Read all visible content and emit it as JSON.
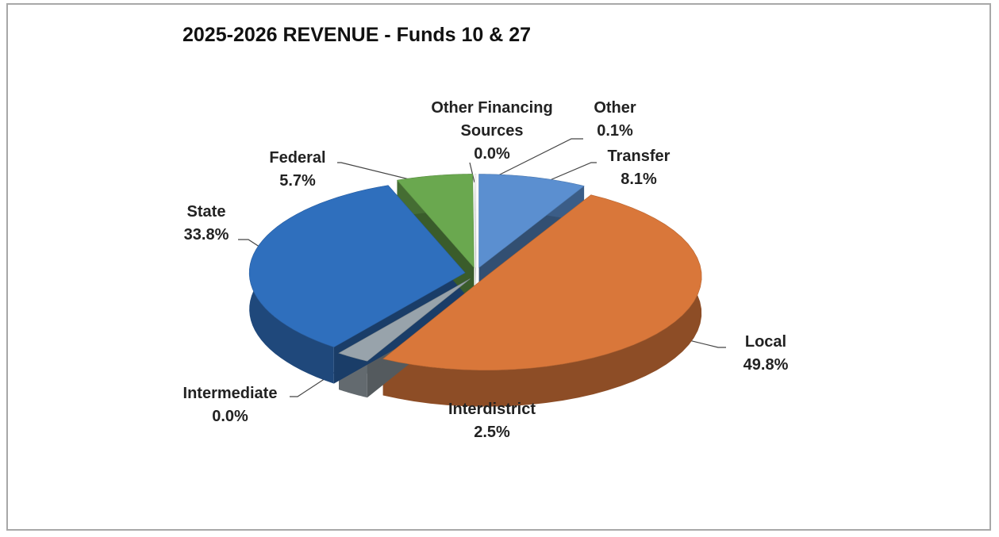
{
  "chart_data": {
    "type": "pie",
    "title": "2025-2026 REVENUE - Funds 10 & 27",
    "categories": [
      "Transfer",
      "Local",
      "Interdistrict",
      "Intermediate",
      "State",
      "Federal",
      "Other Financing Sources",
      "Other"
    ],
    "values": [
      8.1,
      49.8,
      2.5,
      0.0,
      33.8,
      5.7,
      0.0,
      0.1
    ],
    "value_labels": [
      "8.1%",
      "49.8%",
      "2.5%",
      "0.0%",
      "33.8%",
      "5.7%",
      "0.0%",
      "0.1%"
    ],
    "colors": [
      "#5b8fd0",
      "#d9773a",
      "#98a3ab",
      "#c9a43a",
      "#2f6fbd",
      "#6aa84f",
      "#f2f2f2",
      "#ffffff"
    ]
  }
}
